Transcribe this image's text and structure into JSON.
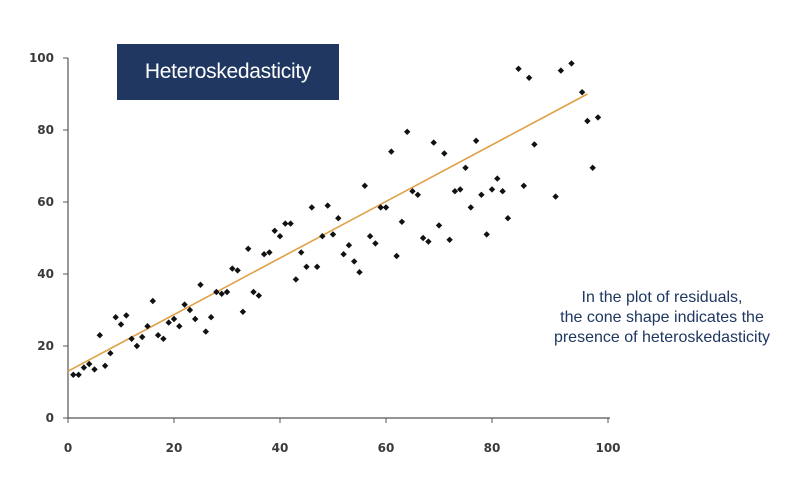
{
  "chart_data": {
    "type": "scatter",
    "title": "Heteroskedasticity",
    "annotation": [
      "In the plot of residuals,",
      "the cone shape indicates the",
      "presence of heteroskedasticity"
    ],
    "xlim": [
      0,
      100
    ],
    "ylim": [
      0,
      100
    ],
    "x_ticks": [
      "0",
      "20",
      "40",
      "60",
      "80",
      "100"
    ],
    "y_ticks": [
      "0",
      "20",
      "40",
      "60",
      "80",
      "100"
    ],
    "xlabel": "",
    "ylabel": "",
    "grid": false,
    "colors": {
      "points": "#111111",
      "trend": "#e0a046",
      "axis": "#555555",
      "title_bg": "#1f3761",
      "annotation": "#1f3761"
    },
    "trend_line": {
      "x": [
        0,
        98
      ],
      "y": [
        13,
        90
      ]
    },
    "points": [
      [
        1,
        12
      ],
      [
        2,
        12
      ],
      [
        3,
        14
      ],
      [
        4,
        15
      ],
      [
        5,
        13.5
      ],
      [
        6,
        23
      ],
      [
        7,
        14.5
      ],
      [
        8,
        18
      ],
      [
        9,
        28
      ],
      [
        10,
        26
      ],
      [
        11,
        28.5
      ],
      [
        12,
        22
      ],
      [
        13,
        20
      ],
      [
        14,
        22.5
      ],
      [
        15,
        25.5
      ],
      [
        16,
        32.5
      ],
      [
        17,
        23
      ],
      [
        18,
        22
      ],
      [
        19,
        26.5
      ],
      [
        20,
        27.5
      ],
      [
        21,
        25.5
      ],
      [
        22,
        31.5
      ],
      [
        23,
        30
      ],
      [
        24,
        27.5
      ],
      [
        25,
        37
      ],
      [
        26,
        24
      ],
      [
        27,
        28
      ],
      [
        28,
        35
      ],
      [
        29,
        34.5
      ],
      [
        30,
        35
      ],
      [
        31,
        41.5
      ],
      [
        32,
        41
      ],
      [
        33,
        29.5
      ],
      [
        34,
        47
      ],
      [
        35,
        35
      ],
      [
        36,
        34
      ],
      [
        37,
        45.5
      ],
      [
        38,
        46
      ],
      [
        39,
        52
      ],
      [
        40,
        50.5
      ],
      [
        41,
        54
      ],
      [
        42,
        54
      ],
      [
        43,
        38.5
      ],
      [
        44,
        46
      ],
      [
        45,
        42
      ],
      [
        46,
        58.5
      ],
      [
        47,
        42
      ],
      [
        48,
        50.5
      ],
      [
        49,
        59
      ],
      [
        50,
        51
      ],
      [
        51,
        55.5
      ],
      [
        52,
        45.5
      ],
      [
        53,
        48
      ],
      [
        54,
        43.5
      ],
      [
        55,
        40.5
      ],
      [
        56,
        64.5
      ],
      [
        57,
        50.5
      ],
      [
        58,
        48.5
      ],
      [
        59,
        58.5
      ],
      [
        60,
        58.5
      ],
      [
        61,
        74
      ],
      [
        62,
        45
      ],
      [
        63,
        54.5
      ],
      [
        64,
        79.5
      ],
      [
        65,
        63
      ],
      [
        66,
        62
      ],
      [
        67,
        50
      ],
      [
        68,
        49
      ],
      [
        69,
        76.5
      ],
      [
        70,
        53.5
      ],
      [
        71,
        73.5
      ],
      [
        72,
        49.5
      ],
      [
        73,
        63
      ],
      [
        74,
        63.5
      ],
      [
        75,
        69.5
      ],
      [
        76,
        58.5
      ],
      [
        77,
        77
      ],
      [
        78,
        62
      ],
      [
        79,
        51
      ],
      [
        80,
        63.5
      ],
      [
        81,
        66.5
      ],
      [
        82,
        63
      ],
      [
        83,
        55.5
      ],
      [
        85,
        97
      ],
      [
        86,
        64.5
      ],
      [
        87,
        94.5
      ],
      [
        88,
        76
      ],
      [
        92,
        61.5
      ],
      [
        93,
        96.5
      ],
      [
        95,
        98.5
      ],
      [
        97,
        90.5
      ],
      [
        98,
        82.5
      ],
      [
        99,
        69.5
      ],
      [
        100,
        83.5
      ]
    ]
  }
}
